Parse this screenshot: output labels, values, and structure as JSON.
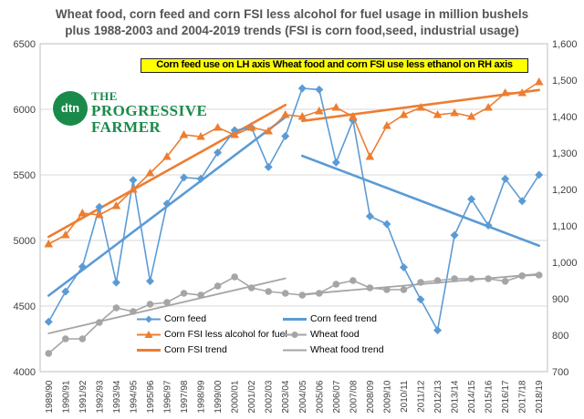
{
  "title": {
    "line1": "Wheat food, corn feed and corn FSI less alcohol for fuel usage in million bushels",
    "line2": "plus 1988-2003 and 2004-2019 trends (FSI is corn food,seed, industrial usage)"
  },
  "banner": "Corn feed use on LH axis     Wheat food and corn FSI use less ethanol on RH axis",
  "logo": {
    "badge": "dtn",
    "line1": "THE",
    "line2": "PROGRESSIVE",
    "line3": "FARMER"
  },
  "colors": {
    "corn_feed": "#5b9bd5",
    "corn_fsi": "#ed7d31",
    "wheat_food": "#a5a5a5",
    "grid": "#d9d9d9",
    "axis_text": "#404040"
  },
  "chart_data": {
    "type": "line",
    "categories": [
      "1989/90",
      "1990/91",
      "1991/92",
      "1992/93",
      "1993/94",
      "1994/95",
      "1995/96",
      "1996/97",
      "1997/98",
      "1998/99",
      "1999/00",
      "2000/01",
      "2001/02",
      "2002/03",
      "2003/04",
      "2004/05",
      "2005/06",
      "2006/07",
      "2007/08",
      "2008/09",
      "2009/10",
      "2010/11",
      "2011/12",
      "2012/13",
      "2013/14",
      "2014/15",
      "2015/16",
      "2016/17",
      "2017/18",
      "2018/19"
    ],
    "left_axis": {
      "min": 4000,
      "max": 6500,
      "ticks": [
        4000,
        4500,
        5000,
        5500,
        6000,
        6500
      ]
    },
    "right_axis": {
      "min": 700,
      "max": 1600,
      "ticks": [
        "700",
        "800",
        "900",
        "1,000",
        "1,100",
        "1,200",
        "1,300",
        "1,400",
        "1,500",
        "1,600"
      ]
    },
    "grid": true,
    "legend_position": "bottom",
    "series": [
      {
        "name": "Corn feed",
        "axis": "left",
        "marker": "diamond",
        "color": "#5b9bd5",
        "values": [
          4380,
          4610,
          4800,
          5255,
          4680,
          5460,
          4690,
          5280,
          5480,
          5470,
          5670,
          5840,
          5860,
          5560,
          5795,
          6160,
          6150,
          5595,
          5915,
          5185,
          5125,
          4795,
          4550,
          4315,
          5040,
          5315,
          5115,
          5470,
          5300,
          5500
        ]
      },
      {
        "name": "Corn FSI less alcohol for fuel",
        "axis": "right",
        "marker": "triangle",
        "color": "#ed7d31",
        "values": [
          1050,
          1075,
          1135,
          1130,
          1155,
          1200,
          1245,
          1290,
          1350,
          1345,
          1370,
          1350,
          1370,
          1360,
          1405,
          1400,
          1415,
          1425,
          1400,
          1290,
          1375,
          1405,
          1425,
          1405,
          1410,
          1400,
          1425,
          1465,
          1465,
          1495
        ]
      },
      {
        "name": "Wheat food",
        "axis": "right",
        "marker": "circle",
        "color": "#a5a5a5",
        "values": [
          750,
          790,
          790,
          835,
          875,
          865,
          885,
          890,
          915,
          910,
          935,
          960,
          930,
          920,
          915,
          910,
          915,
          940,
          950,
          930,
          925,
          925,
          945,
          950,
          955,
          955,
          955,
          948,
          963,
          965
        ]
      },
      {
        "name": "Corn feed trend",
        "axis": "left",
        "segments": [
          [
            0,
            4580,
            14,
            5940
          ],
          [
            15,
            5645,
            29,
            4960
          ]
        ],
        "color": "#5b9bd5"
      },
      {
        "name": "Corn FSI trend",
        "axis": "right",
        "segments": [
          [
            0,
            1070,
            14,
            1432
          ],
          [
            15,
            1388,
            29,
            1473
          ]
        ],
        "color": "#ed7d31"
      },
      {
        "name": "Wheat food trend",
        "axis": "right",
        "segments": [
          [
            0,
            805,
            14,
            956
          ],
          [
            15,
            912,
            29,
            968
          ]
        ],
        "color": "#a5a5a5"
      }
    ]
  }
}
